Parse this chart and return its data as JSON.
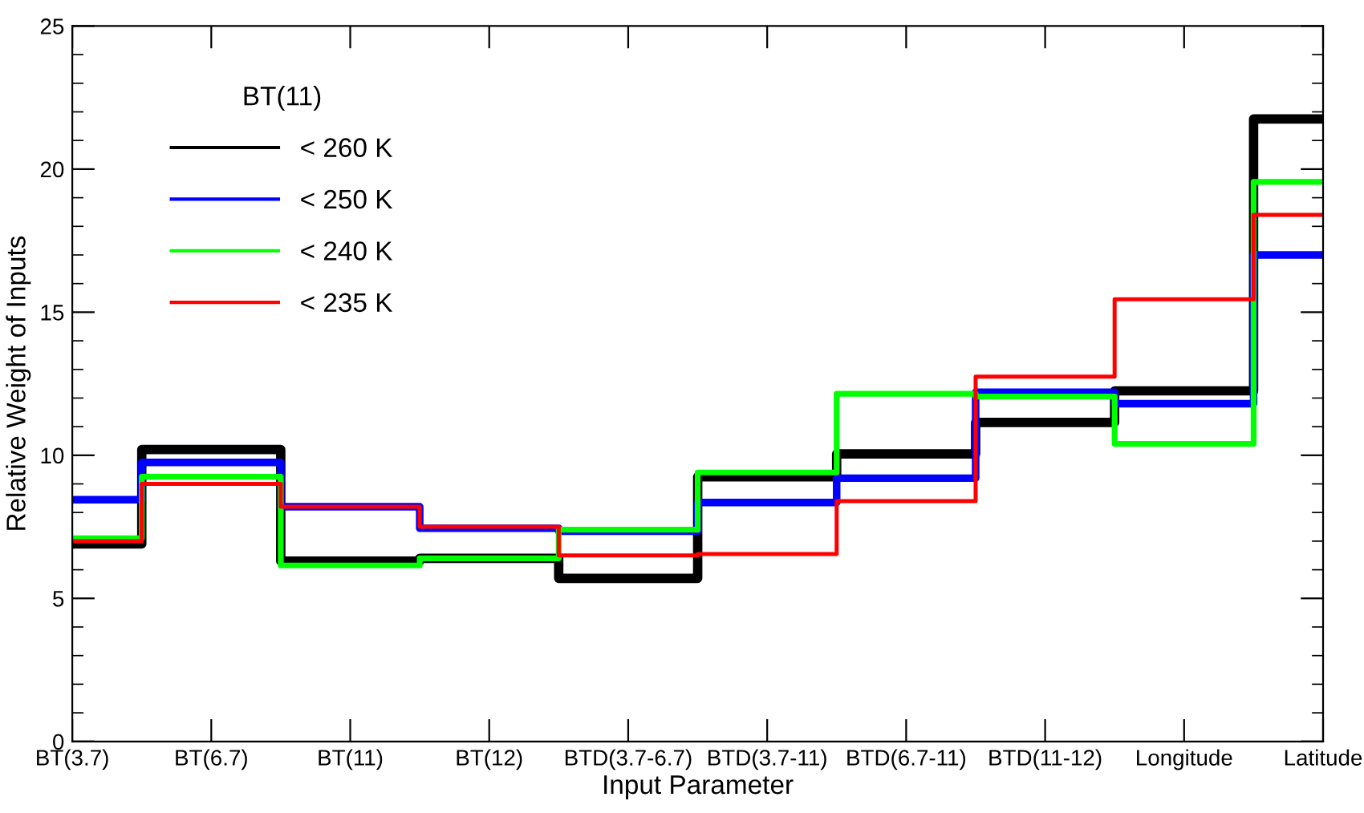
{
  "chart_data": {
    "type": "step",
    "xlabel": "Input Parameter",
    "ylabel": "Relative Weight of Inputs",
    "legend_title": "BT(11)",
    "legend": "top left",
    "grid": false,
    "categories": [
      "BT(3.7)",
      "BT(6.7)",
      "BT(11)",
      "BT(12)",
      "BTD(3.7-6.7)",
      "BTD(3.7-11)",
      "BTD(6.7-11)",
      "BTD(11-12)",
      "Longitude",
      "Latitude"
    ],
    "ylim": [
      0,
      25
    ],
    "yticks": [
      0,
      5,
      10,
      15,
      20,
      25
    ],
    "series": [
      {
        "name": "< 260 K",
        "color": "#000000",
        "values": [
          6.9,
          10.2,
          6.3,
          6.4,
          5.7,
          9.25,
          10.05,
          11.15,
          12.25,
          21.75
        ]
      },
      {
        "name": "< 250 K",
        "color": "#0000ff",
        "values": [
          8.45,
          9.75,
          8.2,
          7.45,
          7.35,
          8.35,
          9.2,
          12.2,
          11.8,
          17.0
        ]
      },
      {
        "name": "< 240 K",
        "color": "#00ff00",
        "values": [
          7.1,
          9.25,
          6.15,
          6.4,
          7.4,
          9.4,
          12.15,
          12.05,
          10.4,
          19.55
        ]
      },
      {
        "name": "< 235 K",
        "color": "#ff0000",
        "values": [
          7.0,
          9.0,
          8.2,
          7.5,
          6.5,
          6.55,
          8.4,
          12.75,
          15.45,
          18.4
        ]
      }
    ]
  }
}
